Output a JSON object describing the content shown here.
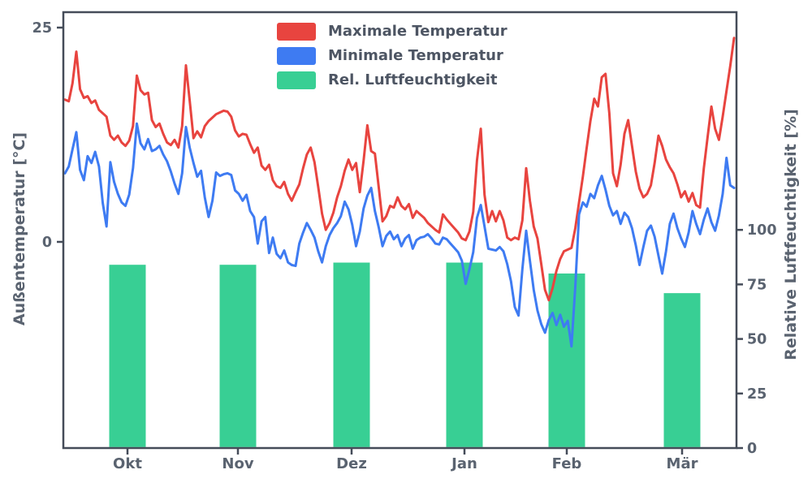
{
  "figure": {
    "background": "#ffffff"
  },
  "palette": {
    "text": "#5a6370",
    "tick_text": "#5a6370",
    "spine": "#454c59",
    "legend_text": "#4d5563"
  },
  "chart_data": {
    "type": "line+bar",
    "title": "",
    "x_tick_labels": [
      "Okt",
      "Nov",
      "Dez",
      "Jan",
      "Feb",
      "Mär"
    ],
    "left_axis": {
      "title": "Außentemperatur [°C]",
      "tick_labels": [
        "25",
        "0"
      ],
      "tick_values": [
        25,
        0
      ],
      "range": [
        -24,
        26.8
      ],
      "unit": "°C"
    },
    "right_axis": {
      "title": "Relative Luftfeuchtigkeit [%]",
      "tick_labels": [
        "0",
        "25",
        "50",
        "75",
        "100"
      ],
      "tick_values": [
        0,
        25,
        50,
        75,
        100
      ],
      "range": [
        0,
        200
      ],
      "unit": "%"
    },
    "grid": false,
    "legend_position": "top-center",
    "series": [
      {
        "name": "Maximale Temperatur",
        "type": "line",
        "axis": "left",
        "color": "#e8443f",
        "values": [
          16.6,
          16.4,
          18.5,
          22.2,
          17.8,
          16.8,
          17.0,
          16.2,
          16.5,
          15.4,
          15.0,
          14.6,
          12.4,
          11.9,
          12.4,
          11.6,
          11.2,
          11.8,
          13.5,
          19.4,
          17.7,
          17.2,
          17.4,
          14.2,
          13.4,
          13.8,
          12.6,
          11.6,
          11.3,
          11.9,
          11.0,
          13.5,
          20.6,
          16.5,
          12.1,
          12.9,
          12.2,
          13.5,
          14.1,
          14.5,
          14.9,
          15.1,
          15.3,
          15.2,
          14.6,
          13.0,
          12.3,
          12.6,
          12.5,
          11.4,
          10.4,
          11.0,
          8.9,
          8.4,
          9.0,
          7.2,
          6.5,
          6.3,
          7.0,
          5.6,
          4.8,
          5.8,
          6.7,
          8.6,
          10.2,
          11.0,
          9.3,
          6.4,
          3.3,
          1.4,
          2.2,
          3.4,
          5.2,
          6.5,
          8.3,
          9.6,
          8.4,
          9.2,
          5.8,
          9.5,
          13.6,
          10.6,
          10.3,
          6.4,
          2.4,
          3.0,
          4.2,
          4.0,
          5.2,
          4.2,
          3.8,
          4.4,
          2.8,
          3.6,
          3.2,
          2.8,
          2.2,
          1.8,
          1.4,
          1.1,
          3.2,
          2.6,
          2.1,
          1.6,
          1.1,
          0.4,
          0.2,
          1.2,
          3.5,
          9.5,
          13.2,
          5.5,
          2.3,
          3.6,
          2.4,
          3.6,
          2.5,
          0.5,
          0.2,
          0.5,
          0.3,
          2.5,
          8.6,
          4.8,
          1.8,
          0.4,
          -2.6,
          -5.6,
          -6.8,
          -5.4,
          -3.4,
          -2.0,
          -1.1,
          -0.9,
          -0.7,
          1.6,
          4.6,
          7.6,
          10.9,
          14.1,
          16.7,
          15.8,
          19.2,
          19.6,
          15.0,
          8.0,
          6.5,
          9.0,
          12.6,
          14.2,
          11.2,
          8.2,
          6.2,
          5.2,
          5.6,
          6.6,
          9.2,
          12.4,
          11.2,
          9.6,
          8.7,
          8.0,
          6.7,
          5.2,
          5.9,
          4.7,
          5.7,
          4.3,
          4.0,
          8.6,
          12.2,
          15.8,
          13.2,
          11.9,
          14.6,
          17.6,
          20.5,
          23.8
        ]
      },
      {
        "name": "Minimale Temperatur",
        "type": "line",
        "axis": "left",
        "color": "#3e7bf2",
        "values": [
          8.0,
          8.8,
          10.8,
          12.8,
          8.4,
          7.2,
          10.0,
          9.2,
          10.5,
          8.8,
          4.5,
          1.8,
          9.3,
          7.0,
          5.6,
          4.6,
          4.2,
          5.5,
          8.6,
          13.8,
          11.5,
          10.8,
          12.0,
          10.6,
          10.8,
          11.2,
          10.2,
          9.4,
          8.2,
          6.8,
          5.6,
          8.0,
          13.4,
          11.0,
          9.2,
          7.6,
          8.3,
          5.2,
          2.9,
          4.8,
          8.1,
          7.7,
          7.9,
          8.0,
          7.8,
          6.0,
          5.6,
          4.8,
          5.5,
          3.6,
          2.9,
          -0.2,
          2.4,
          2.9,
          -1.3,
          0.5,
          -1.4,
          -1.9,
          -1.0,
          -2.4,
          -2.7,
          -2.8,
          -0.2,
          1.1,
          2.2,
          1.4,
          0.5,
          -1.1,
          -2.4,
          -0.5,
          0.8,
          1.6,
          2.2,
          3.0,
          4.7,
          3.8,
          2.0,
          -0.5,
          1.2,
          3.9,
          5.4,
          6.3,
          3.6,
          1.7,
          -0.5,
          0.7,
          1.2,
          0.3,
          0.8,
          -0.5,
          0.4,
          0.8,
          -0.8,
          0.2,
          0.5,
          0.6,
          0.9,
          0.4,
          -0.2,
          -0.3,
          0.5,
          0.3,
          -0.2,
          -0.7,
          -1.2,
          -2.2,
          -4.9,
          -3.2,
          -1.2,
          2.8,
          4.3,
          1.8,
          -0.8,
          -0.9,
          -1.0,
          -0.6,
          -1.1,
          -2.6,
          -4.6,
          -7.6,
          -8.6,
          -3.2,
          1.3,
          -2.2,
          -5.6,
          -8.0,
          -9.6,
          -10.6,
          -9.1,
          -8.3,
          -9.7,
          -8.5,
          -9.9,
          -9.2,
          -12.2,
          -5.2,
          3.2,
          4.6,
          4.1,
          5.6,
          5.1,
          6.6,
          7.7,
          6.1,
          4.2,
          3.1,
          3.6,
          2.1,
          3.4,
          2.9,
          1.6,
          -0.4,
          -2.7,
          -0.6,
          1.3,
          1.9,
          0.6,
          -1.6,
          -3.7,
          -1.1,
          2.1,
          3.3,
          1.6,
          0.4,
          -0.6,
          1.1,
          3.6,
          2.1,
          0.9,
          2.6,
          3.9,
          2.3,
          1.3,
          3.1,
          5.6,
          9.8,
          6.6,
          6.3
        ]
      },
      {
        "name": "Rel. Luftfeuchtigkeit",
        "type": "bar",
        "axis": "right",
        "color": "#38cf94",
        "categories": [
          "Okt",
          "Nov",
          "Dez",
          "Jan",
          "Feb",
          "Mär"
        ],
        "values": [
          84,
          84,
          85,
          85,
          80,
          71
        ]
      }
    ]
  }
}
